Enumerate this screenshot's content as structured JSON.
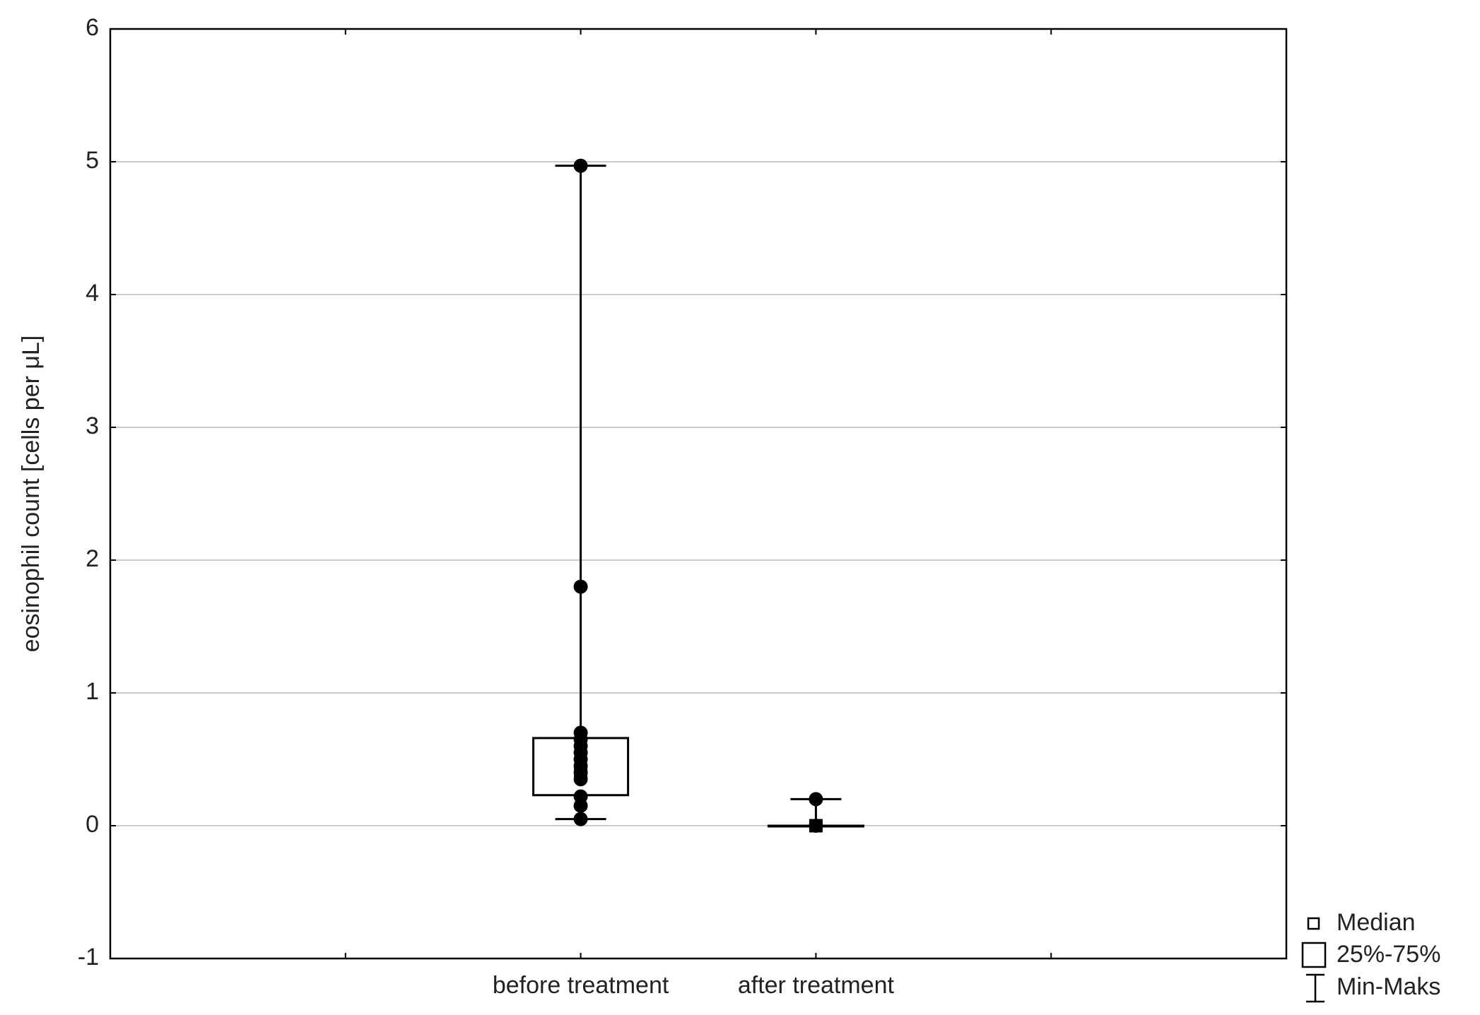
{
  "chart_data": {
    "type": "box",
    "ylabel": "eosinophil count [cells per μL]",
    "categories": [
      null,
      "before treatment",
      "after treatment",
      null
    ],
    "min": [
      null,
      0.05,
      0,
      null
    ],
    "q1": [
      null,
      0.23,
      0,
      null
    ],
    "median": [
      null,
      0.4,
      0,
      null
    ],
    "q3": [
      null,
      0.66,
      0,
      null
    ],
    "max": [
      null,
      4.97,
      0.2,
      null
    ],
    "points": [
      [],
      [
        4.97,
        1.8,
        0.7,
        0.65,
        0.6,
        0.55,
        0.5,
        0.45,
        0.4,
        0.35,
        0.22,
        0.15,
        0.05
      ],
      [
        0.2,
        0
      ],
      []
    ],
    "ylim": [
      -1,
      6
    ],
    "yticks": [
      -1,
      0,
      1,
      2,
      3,
      4,
      5,
      6
    ],
    "grid": true,
    "legend": [
      "Median",
      "25%-75%",
      "Min-Maks"
    ],
    "legend_position": "bottom-right",
    "color": "#000000"
  }
}
